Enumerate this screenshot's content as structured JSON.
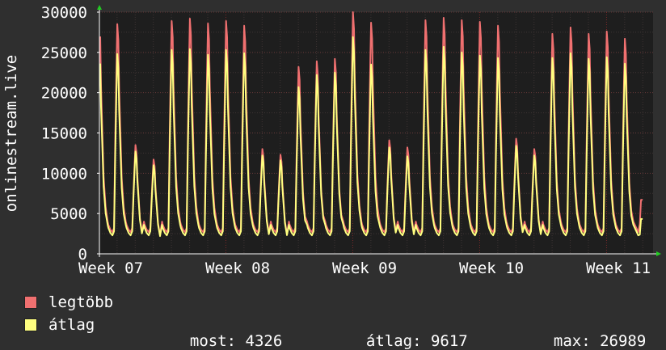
{
  "chart_data": {
    "type": "area",
    "ylabel": "onlinestream.live",
    "ylim": [
      0,
      30000
    ],
    "yticks": [
      0,
      5000,
      10000,
      15000,
      20000,
      25000,
      30000
    ],
    "xticks": [
      "Week 07",
      "Week 08",
      "Week 09",
      "Week 10",
      "Week 11"
    ],
    "colors": {
      "background": "#2f2f2f",
      "plot": "#1e1e1e",
      "grid": "#5a3a3a",
      "max": "#f07070",
      "avg": "#ffff80"
    },
    "days": [
      {
        "max": 29000,
        "avg": 25400
      },
      {
        "max": 28500,
        "avg": 24800
      },
      {
        "max": 13500,
        "avg": 12700
      },
      {
        "max": 11700,
        "avg": 11000
      },
      {
        "max": 28900,
        "avg": 25300
      },
      {
        "max": 29200,
        "avg": 25400
      },
      {
        "max": 28600,
        "avg": 24700
      },
      {
        "max": 28900,
        "avg": 25300
      },
      {
        "max": 28300,
        "avg": 24900
      },
      {
        "max": 13000,
        "avg": 12200
      },
      {
        "max": 12300,
        "avg": 11600
      },
      {
        "max": 23200,
        "avg": 20700
      },
      {
        "max": 23900,
        "avg": 22200
      },
      {
        "max": 24200,
        "avg": 22500
      },
      {
        "max": 30000,
        "avg": 26900
      },
      {
        "max": 28700,
        "avg": 23500
      },
      {
        "max": 14100,
        "avg": 13200
      },
      {
        "max": 13200,
        "avg": 12100
      },
      {
        "max": 29000,
        "avg": 25300
      },
      {
        "max": 29300,
        "avg": 25700
      },
      {
        "max": 29000,
        "avg": 25000
      },
      {
        "max": 28800,
        "avg": 24600
      },
      {
        "max": 28300,
        "avg": 24300
      },
      {
        "max": 14300,
        "avg": 13400
      },
      {
        "max": 13000,
        "avg": 12200
      },
      {
        "max": 27300,
        "avg": 24300
      },
      {
        "max": 28100,
        "avg": 24900
      },
      {
        "max": 27300,
        "avg": 24200
      },
      {
        "max": 27600,
        "avg": 24400
      },
      {
        "max": 26700,
        "avg": 23600
      }
    ],
    "last": {
      "max": 6700,
      "avg": 4326
    },
    "series": [
      {
        "name": "legtöbb",
        "color": "#f07070"
      },
      {
        "name": "átlag",
        "color": "#ffff80"
      }
    ],
    "stats": {
      "current": {
        "label": "most:",
        "value": "4326"
      },
      "average": {
        "label": "átlag:",
        "value": "9617"
      },
      "maximum": {
        "label": "max:",
        "value": "26989"
      }
    }
  }
}
